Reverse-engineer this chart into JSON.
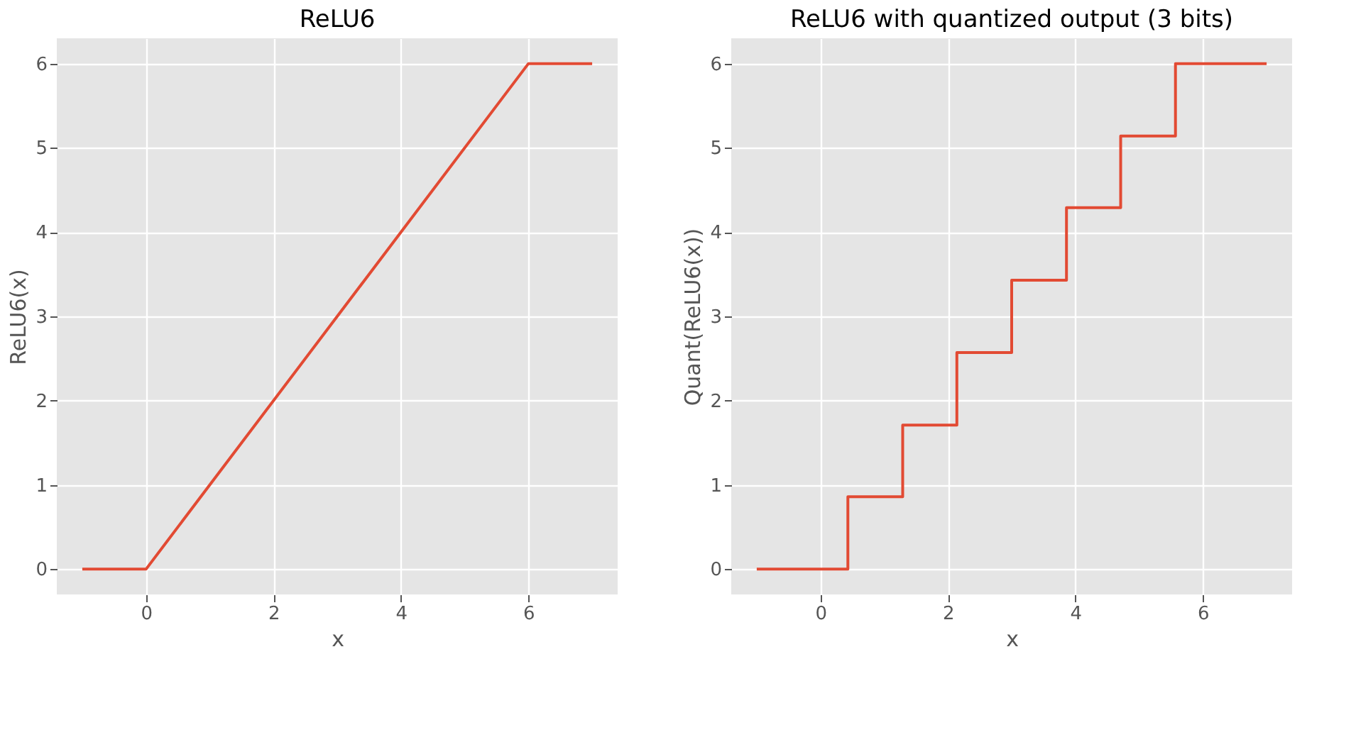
{
  "chart_data": [
    {
      "type": "line",
      "title": "ReLU6",
      "xlabel": "x",
      "ylabel": "ReLU6(x)",
      "x": [
        -1,
        0,
        6,
        7
      ],
      "values": [
        0,
        0,
        6,
        6
      ],
      "color": "#e24a33",
      "xlim": [
        -1.4,
        7.4
      ],
      "ylim": [
        -0.3,
        6.3
      ],
      "xticks": [
        0,
        2,
        4,
        6
      ],
      "yticks": [
        0,
        1,
        2,
        3,
        4,
        5,
        6
      ],
      "grid": true
    },
    {
      "type": "step",
      "title": "ReLU6 with quantized output (3 bits)",
      "xlabel": "x",
      "ylabel": "Quant(ReLU6(x))",
      "x": [
        -1,
        0.43,
        1.29,
        2.14,
        3.0,
        3.86,
        4.71,
        5.57,
        7
      ],
      "values": [
        0,
        0.86,
        1.71,
        2.57,
        3.43,
        4.29,
        5.14,
        6,
        6
      ],
      "color": "#e24a33",
      "xlim": [
        -1.4,
        7.4
      ],
      "ylim": [
        -0.3,
        6.3
      ],
      "xticks": [
        0,
        2,
        4,
        6
      ],
      "yticks": [
        0,
        1,
        2,
        3,
        4,
        5,
        6
      ],
      "grid": true
    }
  ]
}
